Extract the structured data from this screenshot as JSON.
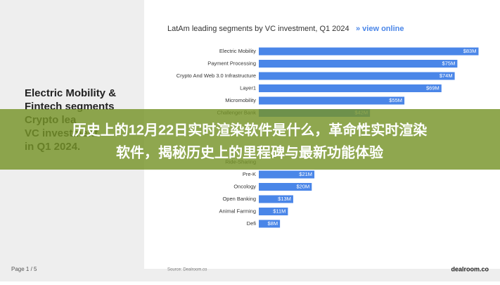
{
  "chart_data": {
    "type": "bar",
    "orientation": "horizontal",
    "title": "LatAm leading segments by VC investment, Q1 2024",
    "link": "» view online",
    "categories": [
      "Electric Mobility",
      "Payment Processing",
      "Crypto And Web 3.0 Infrastructure",
      "Layer1",
      "Micromobility",
      "Challenger Bank",
      null,
      null,
      null,
      "Ride-Sharing",
      "Pre-K",
      "Oncology",
      "Open Banking",
      "Animal Farming",
      "Defi"
    ],
    "values": [
      83,
      75,
      74,
      69,
      55,
      42,
      null,
      null,
      null,
      null,
      21,
      20,
      13,
      11,
      8
    ],
    "value_labels": [
      "$83M",
      "$75M",
      "$74M",
      "$69M",
      "$55M",
      "$42M",
      null,
      null,
      null,
      null,
      "$21M",
      "$20M",
      "$13M",
      "$11M",
      "$8M"
    ],
    "color": "#4a86e8",
    "xlim": [
      0,
      85
    ]
  },
  "headline_lines": [
    "Electric Mobility &",
    "Fintech segments",
    "Crypto lea",
    "VC investment",
    "in Q1 2024."
  ],
  "banner": {
    "lines": [
      "历史上的12月22日实时渲染软件是什么，革命性实时渲染",
      "软件，揭秘历史上的里程碑与最新功能体验"
    ]
  },
  "footer": {
    "page": "Page 1 / 5",
    "source": "Source: Dealroom.co",
    "logo": "dealroom.co"
  }
}
